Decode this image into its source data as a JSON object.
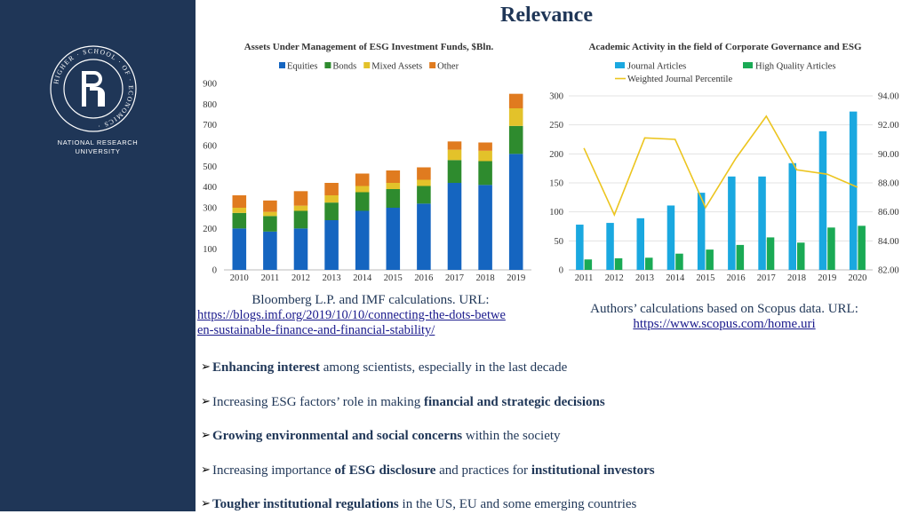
{
  "slide": {
    "title": "Relevance",
    "university": [
      "NATIONAL RESEARCH",
      "UNIVERSITY"
    ],
    "logo_text": "HIGHER · SCHOOL · OF · ECONOMICS ·"
  },
  "colors": {
    "sidebar": "#1f3657",
    "title": "#1f3657",
    "equities": "#1565c0",
    "bonds": "#2e8b2e",
    "mixed": "#e3c22a",
    "other": "#e07b1f",
    "journal": "#1aa8e0",
    "high_quality": "#1aaa55",
    "percentile": "#ecc51f"
  },
  "sources": {
    "left": {
      "text": "Bloomberg L.P. and IMF calculations. URL:",
      "url_line1": "https://blogs.imf.org/2019/10/10/connecting-the-dots-betwe",
      "url_line2": "en-sustainable-finance-and-financial-stability/"
    },
    "right": {
      "text": "Authors’ calculations based on Scopus data. URL:",
      "url": "https://www.scopus.com/home.uri"
    }
  },
  "bullets": [
    {
      "parts": [
        {
          "t": "Enhancing interest",
          "b": true
        },
        {
          "t": " among scientists, especially in the last decade",
          "b": false
        }
      ]
    },
    {
      "parts": [
        {
          "t": "Increasing ESG factors’ role in making ",
          "b": false
        },
        {
          "t": "financial and strategic decisions",
          "b": true
        }
      ]
    },
    {
      "parts": [
        {
          "t": "Growing environmental and social concerns",
          "b": true
        },
        {
          "t": " within the society",
          "b": false
        }
      ]
    },
    {
      "parts": [
        {
          "t": "Increasing importance ",
          "b": false
        },
        {
          "t": "of ESG disclosure",
          "b": true
        },
        {
          "t": " and practices for ",
          "b": false
        },
        {
          "t": "institutional investors",
          "b": true
        }
      ]
    },
    {
      "parts": [
        {
          "t": "Tougher institutional regulations",
          "b": true
        },
        {
          "t": " in the US, EU and some emerging countries",
          "b": false
        }
      ]
    }
  ],
  "chart_data": [
    {
      "type": "bar",
      "stacked": true,
      "title": "Assets Under Management of ESG Investment Funds, $Bln.",
      "categories": [
        "2010",
        "2011",
        "2012",
        "2013",
        "2014",
        "2015",
        "2016",
        "2017",
        "2018",
        "2019"
      ],
      "series": [
        {
          "name": "Equities",
          "values": [
            200,
            185,
            200,
            240,
            285,
            300,
            320,
            420,
            410,
            560
          ]
        },
        {
          "name": "Bonds",
          "values": [
            75,
            75,
            85,
            85,
            90,
            90,
            85,
            110,
            115,
            135
          ]
        },
        {
          "name": "Mixed Assets",
          "values": [
            25,
            20,
            25,
            35,
            30,
            30,
            30,
            50,
            50,
            85
          ]
        },
        {
          "name": "Other",
          "values": [
            60,
            55,
            70,
            60,
            60,
            60,
            60,
            40,
            40,
            70
          ]
        }
      ],
      "yticks": [
        "0",
        "100",
        "200",
        "300",
        "400",
        "500",
        "600",
        "700",
        "800",
        "900"
      ],
      "ylim": [
        0,
        900
      ],
      "legend": "top",
      "grid": false
    },
    {
      "type": "bar+line",
      "title": "Academic Activity in the field of Corporate Governance and ESG",
      "categories": [
        "2011",
        "2012",
        "2013",
        "2014",
        "2015",
        "2016",
        "2017",
        "2018",
        "2019",
        "2020"
      ],
      "series": [
        {
          "name": "Journal Articles",
          "type": "bar",
          "axis": "left",
          "values": [
            78,
            81,
            89,
            111,
            133,
            161,
            161,
            184,
            239,
            273
          ]
        },
        {
          "name": "High Quality Articles",
          "type": "bar",
          "axis": "left",
          "values": [
            18,
            20,
            21,
            28,
            35,
            43,
            56,
            47,
            73,
            76
          ]
        },
        {
          "name": "Weighted Journal Percentile",
          "type": "line",
          "axis": "right",
          "values": [
            90.4,
            85.8,
            91.1,
            91.0,
            86.3,
            89.7,
            92.6,
            88.9,
            88.6,
            87.7
          ]
        }
      ],
      "yticks_left": [
        "0",
        "50",
        "100",
        "150",
        "200",
        "250",
        "300"
      ],
      "yticks_right": [
        "82.00",
        "84.00",
        "86.00",
        "88.00",
        "90.00",
        "92.00",
        "94.00"
      ],
      "ylim_left": [
        0,
        300
      ],
      "ylim_right": [
        82,
        94
      ],
      "legend": "top",
      "grid": true
    }
  ]
}
